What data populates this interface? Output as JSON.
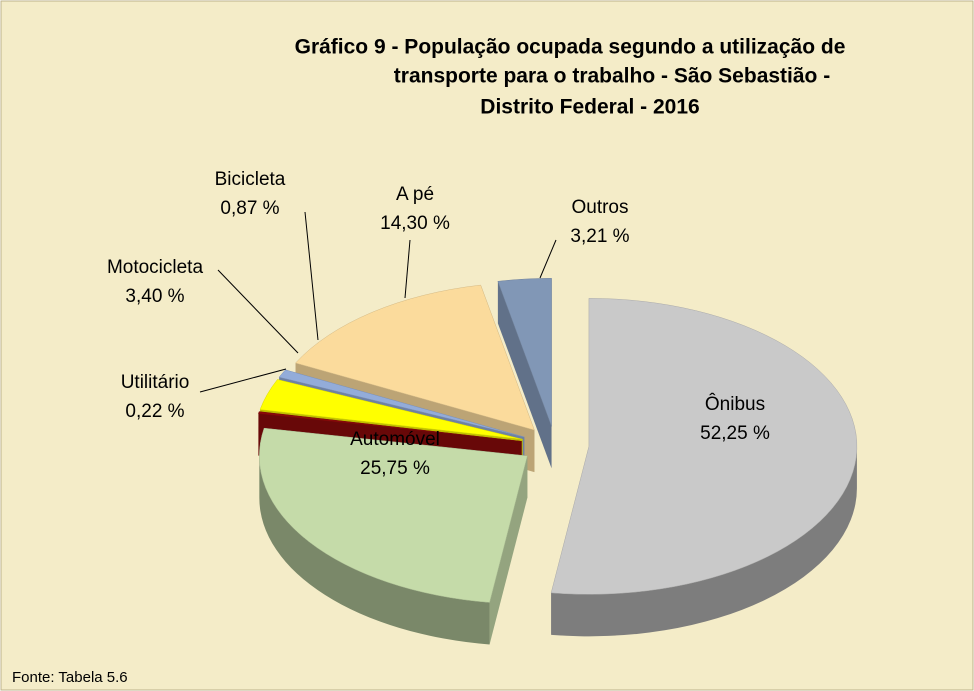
{
  "chart_data": {
    "type": "pie",
    "title": [
      "Gráfico 9 - População ocupada segundo a utilização de",
      "transporte para o trabalho - São Sebastião -",
      "Distrito Federal - 2016"
    ],
    "categories": [
      "Ônibus",
      "Automóvel",
      "Utilitário",
      "Motocicleta",
      "Bicicleta",
      "A pé",
      "Outros"
    ],
    "values": [
      52.25,
      25.75,
      0.22,
      3.4,
      0.87,
      14.3,
      3.21
    ],
    "value_labels": [
      "52,25 %",
      "25,75 %",
      "0,22 %",
      "3,40 %",
      "0,87 %",
      "14,30 %",
      "3,21 %"
    ],
    "colors": [
      "#c9c9c9",
      "#c5dba9",
      "#8b0a0a",
      "#ffff00",
      "#93acd9",
      "#fbdb9c",
      "#8197b6"
    ],
    "source": "Fonte: Tabela  5.6"
  }
}
